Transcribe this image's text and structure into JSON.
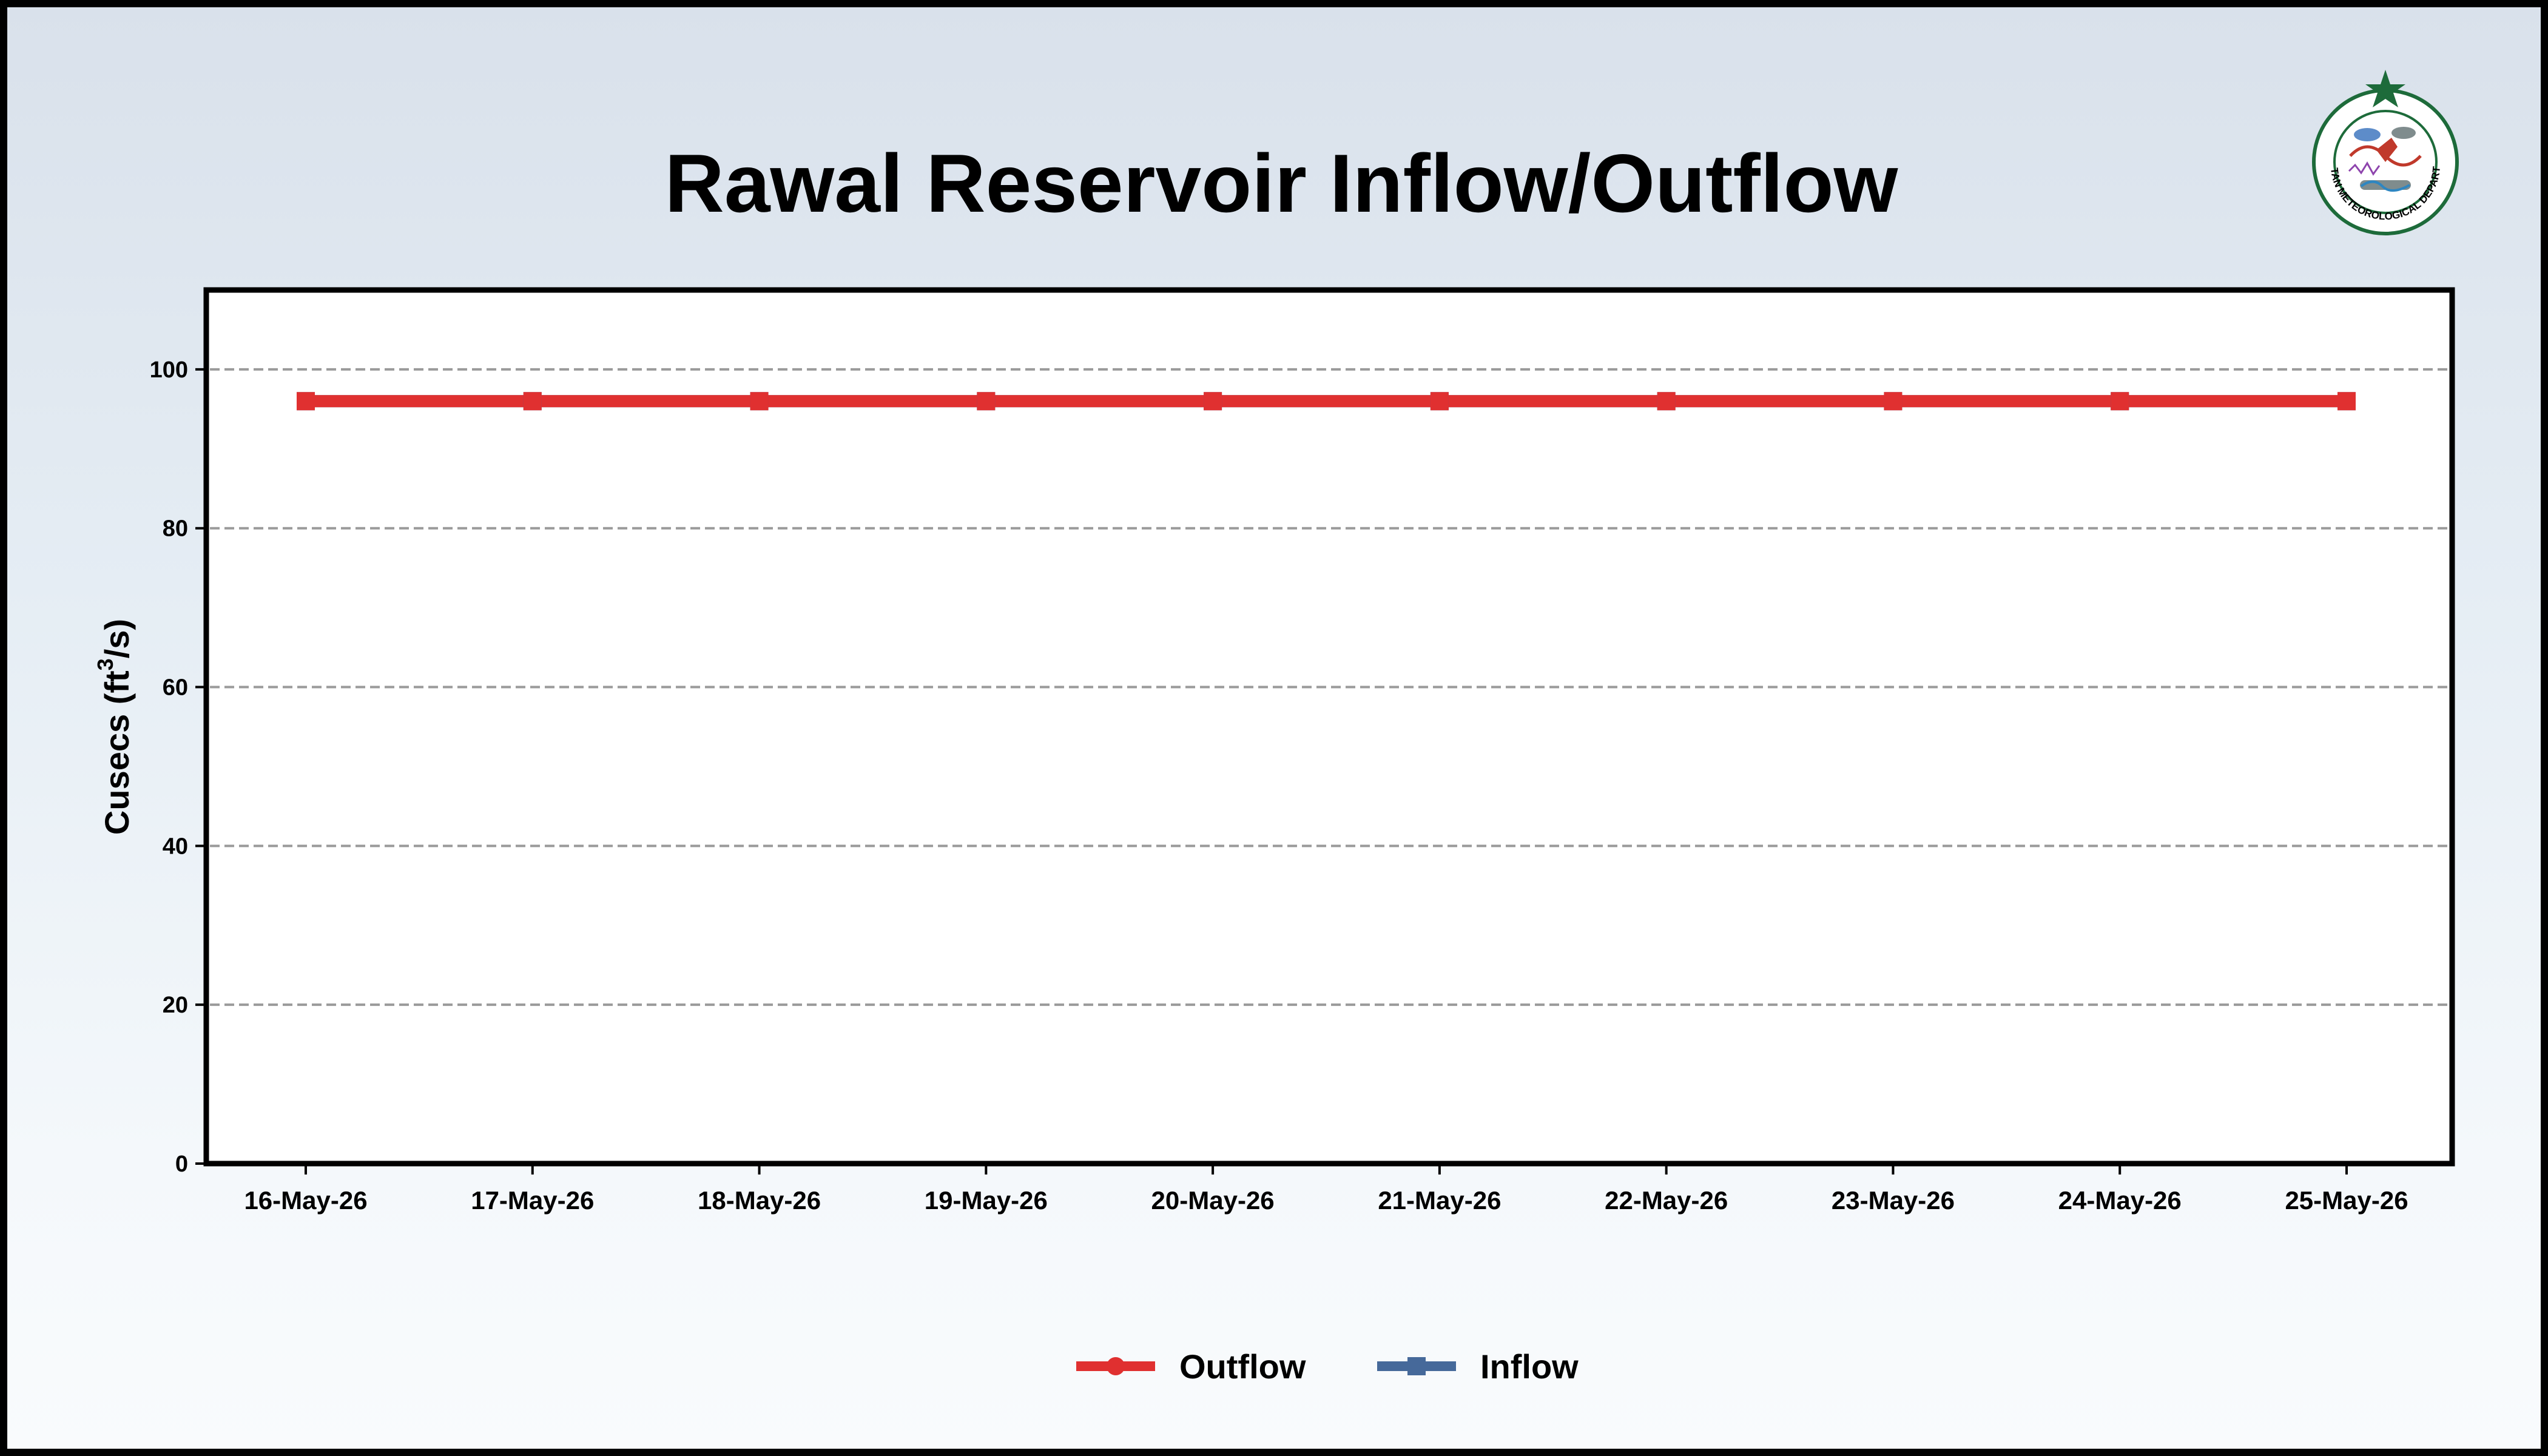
{
  "chart_data": {
    "type": "line",
    "title": "Rawal Reservoir Inflow/Outflow",
    "ylabel_main": "Cusecs (ft",
    "ylabel_sup": "3",
    "ylabel_end": "/s)",
    "ylim": [
      0,
      110
    ],
    "yticks": [
      0,
      20,
      40,
      60,
      80,
      100
    ],
    "grid": true,
    "legend_position": "bottom-center",
    "categories": [
      "16-May-26",
      "17-May-26",
      "18-May-26",
      "19-May-26",
      "20-May-26",
      "21-May-26",
      "22-May-26",
      "23-May-26",
      "24-May-26",
      "25-May-26"
    ],
    "series": [
      {
        "name": "Outflow",
        "color": "#e03030",
        "marker": "circle",
        "values": [
          96,
          96,
          96,
          96,
          96,
          96,
          96,
          96,
          96,
          96
        ]
      },
      {
        "name": "Inflow",
        "color": "#46699a",
        "marker": "square",
        "values": [
          96,
          96,
          96,
          96,
          96,
          96,
          96,
          96,
          96,
          96
        ]
      }
    ]
  },
  "logo": {
    "icon": "pmd-emblem-icon",
    "text": "PAKISTAN METEOROLOGICAL DEPARTMENT"
  }
}
